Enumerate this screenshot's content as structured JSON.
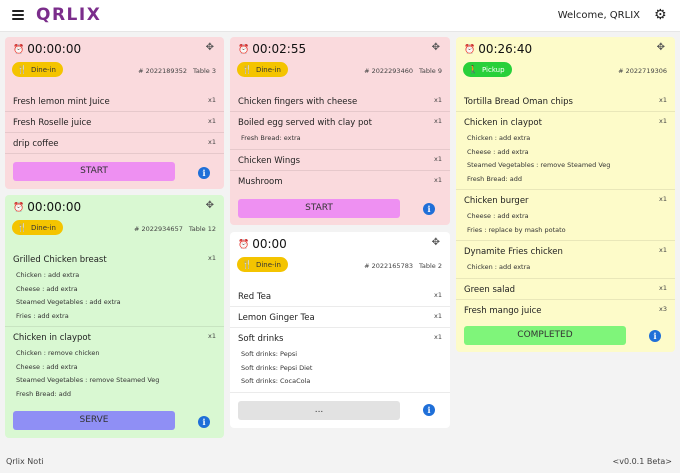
{
  "header": {
    "logo": "QRLIX",
    "welcome": "Welcome, QRLIX",
    "menu_icon": "hamburger-icon",
    "settings_icon": "gear-icon"
  },
  "orders": {
    "o1": {
      "timer": "00:00:00",
      "type": "Dine-in",
      "order_no": "# 2022189352",
      "table": "Table 3",
      "items": [
        {
          "name": "Fresh lemon mint Juice",
          "qty": "x1"
        },
        {
          "name": "Fresh Roselle juice",
          "qty": "x1"
        },
        {
          "name": "drip coffee",
          "qty": "x1"
        }
      ],
      "action": "START"
    },
    "o2": {
      "timer": "00:00:00",
      "type": "Dine-in",
      "order_no": "# 2022934657",
      "table": "Table 12",
      "items": [
        {
          "name": "Grilled Chicken breast",
          "qty": "x1",
          "mods": [
            "Chicken : add extra",
            "Cheese : add extra",
            "Steamed Vegetables : add extra",
            "Fries : add extra"
          ]
        },
        {
          "name": "Chicken in claypot",
          "qty": "x1",
          "mods": [
            "Chicken : remove chicken",
            "Cheese : add extra",
            "Steamed Vegetables : remove Steamed Veg",
            "Fresh Bread: add"
          ]
        }
      ],
      "action": "SERVE"
    },
    "o3": {
      "timer": "00:02:55",
      "type": "Dine-in",
      "order_no": "# 2022293460",
      "table": "Table 9",
      "items": [
        {
          "name": "Chicken fingers with cheese",
          "qty": "x1"
        },
        {
          "name": "Boiled egg served with clay pot",
          "qty": "x1",
          "mods": [
            "Fresh Bread: extra"
          ]
        },
        {
          "name": "Chicken Wings",
          "qty": "x1"
        },
        {
          "name": "Mushroom",
          "qty": "x1"
        }
      ],
      "action": "START"
    },
    "o4": {
      "timer": "00:00",
      "type": "Dine-in",
      "order_no": "# 2022165783",
      "table": "Table 2",
      "items": [
        {
          "name": "Red Tea",
          "qty": "x1"
        },
        {
          "name": "Lemon Ginger Tea",
          "qty": "x1"
        },
        {
          "name": "Soft drinks",
          "qty": "x1",
          "mods": [
            "Soft drinks: Pepsi",
            "Soft drinks: Pepsi Diet",
            "Soft drinks: CocaCola"
          ]
        }
      ],
      "action": "..."
    },
    "o5": {
      "timer": "00:26:40",
      "type": "Pickup",
      "order_no": "# 2022719306",
      "table": "",
      "items": [
        {
          "name": "Tortilla Bread Oman chips",
          "qty": "x1"
        },
        {
          "name": "Chicken in claypot",
          "qty": "x1",
          "mods": [
            "Chicken : add extra",
            "Cheese : add extra",
            "Steamed Vegetables : remove Steamed Veg",
            "Fresh Bread: add"
          ]
        },
        {
          "name": "Chicken burger",
          "qty": "x1",
          "mods": [
            "Cheese : add extra",
            "Fries : replace by mash potato"
          ]
        },
        {
          "name": "Dynamite Fries chicken",
          "qty": "x1",
          "mods": [
            "Chicken : add extra"
          ]
        },
        {
          "name": "Green salad",
          "qty": "x1"
        },
        {
          "name": "Fresh mango juice",
          "qty": "x3"
        }
      ],
      "action": "COMPLETED"
    }
  },
  "footer": {
    "left": "Qrlix Noti",
    "right": "<v0.0.1 Beta>"
  },
  "colors": {
    "brand": "#7b2d8b",
    "card_new": "#fadadd",
    "card_ready": "#d9f8d2",
    "card_pickup": "#fdfbc9",
    "dine_badge": "#f4c400",
    "pickup_badge": "#28d03a",
    "info": "#1f6fd8"
  }
}
